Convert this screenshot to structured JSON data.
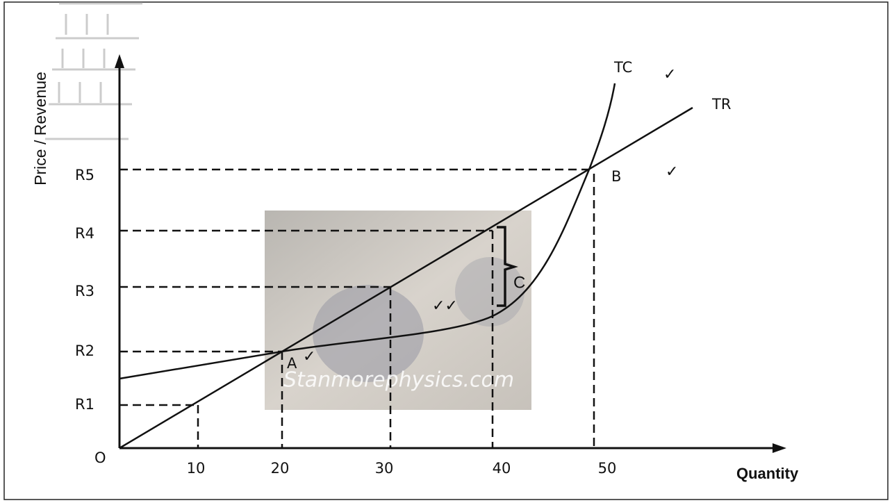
{
  "axes": {
    "y_label": "Price / Revenue",
    "x_label": "Quantity",
    "origin": "O",
    "y_ticks": [
      "R1",
      "R2",
      "R3",
      "R4",
      "R5"
    ],
    "x_ticks": [
      "10",
      "20",
      "30",
      "40",
      "50"
    ]
  },
  "curves": {
    "tc": "TC",
    "tr": "TR"
  },
  "points": {
    "a": "A",
    "b": "B",
    "c": "C"
  },
  "ticks": {
    "tc": "✓",
    "b": "✓",
    "a": "✓",
    "gap": "✓✓"
  },
  "watermark": "Stanmorephysics.com"
}
